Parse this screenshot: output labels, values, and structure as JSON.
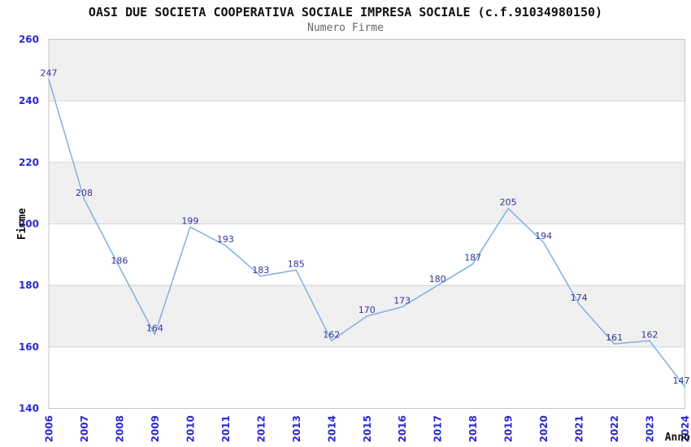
{
  "chart_data": {
    "type": "line",
    "title": "OASI DUE SOCIETA COOPERATIVA SOCIALE IMPRESA SOCIALE (c.f.91034980150)",
    "subtitle": "Numero Firme",
    "xlabel": "Anno",
    "ylabel": "Firme",
    "x": [
      2006,
      2007,
      2008,
      2009,
      2010,
      2011,
      2012,
      2013,
      2014,
      2015,
      2016,
      2017,
      2018,
      2019,
      2020,
      2021,
      2022,
      2023,
      2024
    ],
    "values": [
      247,
      208,
      186,
      164,
      199,
      193,
      183,
      185,
      162,
      170,
      173,
      180,
      187,
      205,
      194,
      174,
      161,
      162,
      147
    ],
    "ylim": [
      140,
      260
    ],
    "yticks": [
      140,
      160,
      180,
      200,
      220,
      240,
      260
    ],
    "grid": "horizontal-banded-rows",
    "legend": "none",
    "markers": "none",
    "data_labels_visible": true,
    "colors": {
      "background": "#ffffff",
      "line": "#7fb0e4",
      "data_label": "#333399",
      "axis_tick_label": "#2929cc",
      "band_fill": "#f0f0f0",
      "band_fill_alt": "#ffffff",
      "grid_line": "#d4d4d4",
      "plot_border": "#c6c6c6",
      "title": "#111111",
      "subtitle": "#666666",
      "axis_title": "#111111"
    }
  }
}
